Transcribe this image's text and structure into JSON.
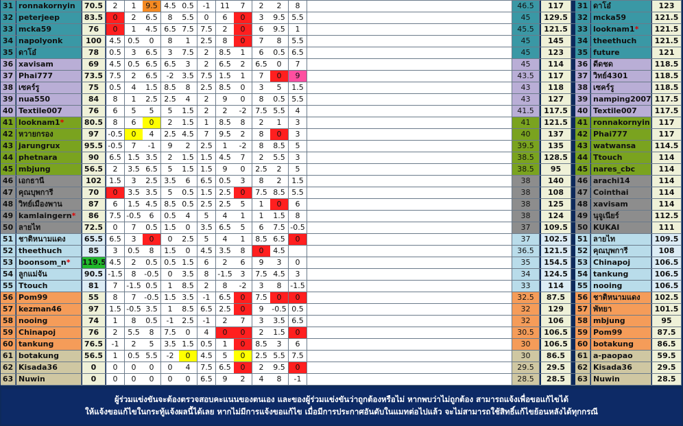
{
  "colors": {
    "teal": "#3a98a5",
    "lavender": "#b9aed6",
    "olive": "#7aa31f",
    "gray": "#8d8d8d",
    "lightblue": "#b9dcea",
    "orange": "#f59c59",
    "beige": "#cfc7a2",
    "scoreLight": "#eff1d8",
    "scoreBlue": "#dcecf5",
    "cellWhite": "#ffffff",
    "red": "#ff1f1f",
    "yellow": "#ffff00",
    "orangeHi": "#f58a22",
    "pink": "#ff4fa0",
    "green": "#21b82a"
  },
  "left_rows": [
    {
      "rank": "31",
      "name": "ronnakornyin",
      "total": "70.5",
      "weeks": [
        "2",
        "1",
        "9.5",
        "4.5",
        "0.5",
        "-1",
        "11",
        "7",
        "2",
        "2",
        "8"
      ],
      "band": "teal",
      "hi": {
        "2": "orangeHi"
      }
    },
    {
      "rank": "32",
      "name": "peterjeep",
      "total": "83.5",
      "weeks": [
        "0",
        "2",
        "6.5",
        "8",
        "5.5",
        "0",
        "6",
        "0",
        "3",
        "9.5",
        "5.5"
      ],
      "band": "teal",
      "hi": {
        "0": "red",
        "7": "red"
      }
    },
    {
      "rank": "33",
      "name": "mcka59",
      "total": "76",
      "weeks": [
        "0",
        "1",
        "4.5",
        "6.5",
        "7.5",
        "7.5",
        "2",
        "0",
        "6",
        "9.5",
        "1"
      ],
      "band": "teal",
      "hi": {
        "0": "red",
        "7": "red"
      }
    },
    {
      "rank": "34",
      "name": "napolyonk",
      "total": "100",
      "weeks": [
        "4.5",
        "0.5",
        "0",
        "8",
        "1",
        "2.5",
        "8",
        "0",
        "7",
        "8",
        "5.5"
      ],
      "band": "teal",
      "hi": {
        "7": "red"
      }
    },
    {
      "rank": "35",
      "name": "ดาโอ๋",
      "total": "78",
      "weeks": [
        "0.5",
        "3",
        "6.5",
        "3",
        "7.5",
        "2",
        "8.5",
        "1",
        "6",
        "0.5",
        "6.5"
      ],
      "band": "teal",
      "hi": {}
    },
    {
      "rank": "36",
      "name": "xavisam",
      "total": "69",
      "weeks": [
        "4.5",
        "0.5",
        "6.5",
        "6.5",
        "3",
        "2",
        "6.5",
        "2",
        "6.5",
        "0",
        "7"
      ],
      "band": "lavender",
      "hi": {}
    },
    {
      "rank": "37",
      "name": "Phai777",
      "total": "73.5",
      "weeks": [
        "7.5",
        "2",
        "6.5",
        "-2",
        "3.5",
        "7.5",
        "1.5",
        "1",
        "7",
        "0",
        "9"
      ],
      "band": "lavender",
      "hi": {
        "9": "red",
        "10": "pink"
      }
    },
    {
      "rank": "38",
      "name": "เซคร์รู",
      "total": "75",
      "weeks": [
        "0.5",
        "4",
        "1.5",
        "8.5",
        "8",
        "2.5",
        "8.5",
        "0",
        "3",
        "5",
        "1.5"
      ],
      "band": "lavender",
      "hi": {}
    },
    {
      "rank": "39",
      "name": "nua550",
      "total": "84",
      "weeks": [
        "8",
        "1",
        "2.5",
        "2.5",
        "4",
        "2",
        "9",
        "0",
        "8",
        "0.5",
        "5.5"
      ],
      "band": "lavender",
      "hi": {}
    },
    {
      "rank": "40",
      "name": "Textile007",
      "total": "76",
      "weeks": [
        "6",
        "5",
        "5",
        "5",
        "1.5",
        "2",
        "2",
        "-2",
        "7.5",
        "5.5",
        "4"
      ],
      "band": "lavender",
      "hi": {}
    },
    {
      "rank": "41",
      "name": "looknam1",
      "star": true,
      "total": "80.5",
      "weeks": [
        "8",
        "6",
        "0",
        "2",
        "1.5",
        "1",
        "8.5",
        "8",
        "2",
        "1",
        "3"
      ],
      "band": "olive",
      "hi": {
        "2": "yellow"
      }
    },
    {
      "rank": "42",
      "name": "หวายกรอง",
      "total": "97",
      "weeks": [
        "-0.5",
        "0",
        "4",
        "2.5",
        "4.5",
        "7",
        "9.5",
        "2",
        "8",
        "0",
        "3"
      ],
      "band": "olive",
      "hi": {
        "1": "yellow",
        "9": "red"
      }
    },
    {
      "rank": "43",
      "name": "jarungrux",
      "total": "95.5",
      "weeks": [
        "-0.5",
        "7",
        "-1",
        "9",
        "2",
        "2.5",
        "1",
        "-2",
        "8",
        "8.5",
        "5"
      ],
      "band": "olive",
      "hi": {}
    },
    {
      "rank": "44",
      "name": "phetnara",
      "total": "90",
      "weeks": [
        "6.5",
        "1.5",
        "3.5",
        "2",
        "1.5",
        "1.5",
        "4.5",
        "7",
        "2",
        "5.5",
        "3"
      ],
      "band": "olive",
      "hi": {}
    },
    {
      "rank": "45",
      "name": "mbjung",
      "total": "56.5",
      "weeks": [
        "2",
        "3.5",
        "6.5",
        "5",
        "1.5",
        "1.5",
        "9",
        "0",
        "2.5",
        "2",
        "5"
      ],
      "band": "olive",
      "hi": {}
    },
    {
      "rank": "46",
      "name": "เอกธานี",
      "total": "102",
      "weeks": [
        "1.5",
        "3",
        "2.5",
        "3.5",
        "6",
        "6.5",
        "0.5",
        "3",
        "8",
        "2",
        "1.5"
      ],
      "band": "gray",
      "hi": {}
    },
    {
      "rank": "47",
      "name": "คุณบุพการี",
      "total": "70",
      "weeks": [
        "0",
        "3.5",
        "3.5",
        "5",
        "0.5",
        "1.5",
        "2.5",
        "0",
        "7.5",
        "8.5",
        "5.5"
      ],
      "band": "gray",
      "hi": {
        "0": "red",
        "7": "red"
      }
    },
    {
      "rank": "48",
      "name": "วิทย์เมืองพาน",
      "total": "87",
      "weeks": [
        "6",
        "1.5",
        "4.5",
        "8.5",
        "0.5",
        "2.5",
        "2.5",
        "5",
        "1",
        "0",
        "6"
      ],
      "band": "gray",
      "hi": {
        "9": "red"
      }
    },
    {
      "rank": "49",
      "name": "kamlaingern",
      "star": true,
      "total": "86",
      "weeks": [
        "7.5",
        "-0.5",
        "6",
        "0.5",
        "4",
        "5",
        "4",
        "1",
        "1",
        "1.5",
        "8"
      ],
      "band": "gray",
      "hi": {}
    },
    {
      "rank": "50",
      "name": "ลายไท",
      "total": "72.5",
      "weeks": [
        "0",
        "7",
        "0.5",
        "1.5",
        "0",
        "3.5",
        "6.5",
        "5",
        "6",
        "7.5",
        "-0.5"
      ],
      "band": "gray",
      "hi": {}
    },
    {
      "rank": "51",
      "name": "ชาติหนามแดง",
      "total": "65.5",
      "weeks": [
        "6.5",
        "3",
        "0",
        "0",
        "2.5",
        "5",
        "4",
        "1",
        "8.5",
        "6.5",
        "0"
      ],
      "band": "lightblue",
      "hi": {
        "2": "red",
        "10": "red"
      }
    },
    {
      "rank": "52",
      "name": "theethuch",
      "total": "85",
      "weeks": [
        "3",
        "0.5",
        "8",
        "1.5",
        "0",
        "4.5",
        "3.5",
        "8",
        "0",
        "4.5",
        ""
      ],
      "band": "lightblue",
      "hi": {
        "8": "red"
      }
    },
    {
      "rank": "53",
      "name": "boonsom_n",
      "star": true,
      "total": "119.5",
      "weeks": [
        "4.5",
        "2",
        "0.5",
        "0.5",
        "1.5",
        "6",
        "2",
        "6",
        "9",
        "3",
        "0"
      ],
      "band": "lightblue",
      "hi": {}
    },
    {
      "rank": "54",
      "name": "ลูกแม่จัน",
      "total": "90.5",
      "weeks": [
        "-1.5",
        "8",
        "-0.5",
        "0",
        "3.5",
        "8",
        "-1.5",
        "3",
        "7.5",
        "4.5",
        "3"
      ],
      "band": "lightblue",
      "hi": {}
    },
    {
      "rank": "55",
      "name": "Ttouch",
      "total": "81",
      "weeks": [
        "7",
        "-1.5",
        "0.5",
        "1",
        "8.5",
        "2",
        "8",
        "-2",
        "3",
        "8",
        "-1.5"
      ],
      "band": "lightblue",
      "hi": {}
    },
    {
      "rank": "56",
      "name": "Pom99",
      "total": "55",
      "weeks": [
        "8",
        "7",
        "-0.5",
        "1.5",
        "3.5",
        "-1",
        "6.5",
        "0",
        "7.5",
        "0",
        "0"
      ],
      "band": "orange",
      "hi": {
        "7": "red",
        "9": "red",
        "10": "red"
      }
    },
    {
      "rank": "57",
      "name": "kezman46",
      "total": "97",
      "weeks": [
        "1.5",
        "-0.5",
        "3.5",
        "1",
        "8.5",
        "6.5",
        "2.5",
        "0",
        "9",
        "-0.5",
        "0.5"
      ],
      "band": "orange",
      "hi": {
        "7": "red"
      }
    },
    {
      "rank": "58",
      "name": "nooing",
      "total": "74",
      "weeks": [
        "1",
        "8",
        "0.5",
        "-1",
        "2.5",
        "-1",
        "2",
        "7",
        "3",
        "3.5",
        "6.5"
      ],
      "band": "orange",
      "hi": {}
    },
    {
      "rank": "59",
      "name": "Chinapoj",
      "total": "76",
      "weeks": [
        "2",
        "5.5",
        "8",
        "7.5",
        "0",
        "4",
        "0",
        "0",
        "2",
        "1.5",
        "0"
      ],
      "band": "orange",
      "hi": {
        "6": "red",
        "7": "red",
        "10": "red"
      }
    },
    {
      "rank": "60",
      "name": "tankung",
      "total": "76.5",
      "weeks": [
        "-1",
        "2",
        "5",
        "3.5",
        "1.5",
        "0.5",
        "1",
        "0",
        "8.5",
        "3",
        "6"
      ],
      "band": "orange",
      "hi": {
        "7": "red"
      }
    },
    {
      "rank": "61",
      "name": "botakung",
      "total": "56.5",
      "weeks": [
        "1",
        "0.5",
        "5.5",
        "-2",
        "0",
        "4.5",
        "5",
        "0",
        "2.5",
        "5.5",
        "7.5"
      ],
      "band": "beige",
      "hi": {
        "4": "yellow",
        "7": "yellow"
      }
    },
    {
      "rank": "62",
      "name": "Kisada36",
      "total": "0",
      "weeks": [
        "0",
        "0",
        "0",
        "0",
        "4",
        "7.5",
        "6.5",
        "0",
        "2",
        "9.5",
        "0"
      ],
      "band": "beige",
      "hi": {
        "7": "red",
        "10": "red"
      }
    },
    {
      "rank": "63",
      "name": "Nuwin",
      "total": "0",
      "weeks": [
        "0",
        "0",
        "0",
        "0",
        "0",
        "6.5",
        "9",
        "2",
        "4",
        "8",
        "-1"
      ],
      "band": "beige",
      "hi": {}
    }
  ],
  "mid_rows": [
    {
      "a": "46.5",
      "b": "117"
    },
    {
      "a": "45",
      "b": "129.5"
    },
    {
      "a": "45.5",
      "b": "121.5"
    },
    {
      "a": "45",
      "b": "145"
    },
    {
      "a": "45",
      "b": "123"
    },
    {
      "a": "45",
      "b": "114"
    },
    {
      "a": "43.5",
      "b": "117"
    },
    {
      "a": "43",
      "b": "118"
    },
    {
      "a": "43",
      "b": "127"
    },
    {
      "a": "41.5",
      "b": "117.5"
    },
    {
      "a": "41",
      "b": "121.5"
    },
    {
      "a": "40",
      "b": "137"
    },
    {
      "a": "39.5",
      "b": "135"
    },
    {
      "a": "38.5",
      "b": "128.5"
    },
    {
      "a": "38.5",
      "b": "95"
    },
    {
      "a": "38",
      "b": "140"
    },
    {
      "a": "38",
      "b": "108"
    },
    {
      "a": "38",
      "b": "125"
    },
    {
      "a": "38",
      "b": "124"
    },
    {
      "a": "37",
      "b": "109.5"
    },
    {
      "a": "37",
      "b": "102.5"
    },
    {
      "a": "36.5",
      "b": "121.5"
    },
    {
      "a": "35",
      "b": "154.5"
    },
    {
      "a": "34",
      "b": "124.5"
    },
    {
      "a": "33",
      "b": "114"
    },
    {
      "a": "32.5",
      "b": "87.5"
    },
    {
      "a": "32",
      "b": "129"
    },
    {
      "a": "32",
      "b": "106"
    },
    {
      "a": "30.5",
      "b": "106.5"
    },
    {
      "a": "30",
      "b": "106.5"
    },
    {
      "a": "30",
      "b": "86.5"
    },
    {
      "a": "29.5",
      "b": "29.5"
    },
    {
      "a": "28.5",
      "b": "28.5"
    }
  ],
  "right_rows": [
    {
      "rank": "31",
      "name": "ดาโอ๋",
      "score": "123"
    },
    {
      "rank": "32",
      "name": "mcka59",
      "score": "121.5"
    },
    {
      "rank": "33",
      "name": "looknam1",
      "star": true,
      "score": "121.5"
    },
    {
      "rank": "34",
      "name": "theethuch",
      "score": "121.5"
    },
    {
      "rank": "35",
      "name": "future",
      "score": "121"
    },
    {
      "rank": "36",
      "name": "ดีดชด",
      "score": "118.5"
    },
    {
      "rank": "37",
      "name": "วิทย์4301",
      "score": "118.5"
    },
    {
      "rank": "38",
      "name": "เซคร์รู",
      "score": "118.5"
    },
    {
      "rank": "39",
      "name": "namping2007",
      "score": "117.5"
    },
    {
      "rank": "40",
      "name": "Textile007",
      "score": "117.5"
    },
    {
      "rank": "41",
      "name": "ronnakornyin",
      "score": "117"
    },
    {
      "rank": "42",
      "name": "Phai777",
      "score": "117"
    },
    {
      "rank": "43",
      "name": "watwansa",
      "score": "114.5"
    },
    {
      "rank": "44",
      "name": "Ttouch",
      "score": "114"
    },
    {
      "rank": "45",
      "name": "nares_cbc",
      "score": "114"
    },
    {
      "rank": "46",
      "name": "arachi14",
      "score": "114"
    },
    {
      "rank": "47",
      "name": "Cointhai",
      "score": "114"
    },
    {
      "rank": "48",
      "name": "xavisam",
      "score": "114"
    },
    {
      "rank": "49",
      "name": "นุจูเนียร์",
      "score": "112.5"
    },
    {
      "rank": "50",
      "name": "KUKAI",
      "score": "111"
    },
    {
      "rank": "51",
      "name": "ลายไท",
      "score": "109.5"
    },
    {
      "rank": "52",
      "name": "คุณบุพการี",
      "score": "108"
    },
    {
      "rank": "53",
      "name": "Chinapoj",
      "score": "106.5"
    },
    {
      "rank": "54",
      "name": "tankung",
      "score": "106.5"
    },
    {
      "rank": "55",
      "name": "nooing",
      "score": "106.5"
    },
    {
      "rank": "56",
      "name": "ชาติหนามแดง",
      "score": "102.5"
    },
    {
      "rank": "57",
      "name": "พัทยา",
      "score": "101.5"
    },
    {
      "rank": "58",
      "name": "mbjung",
      "score": "95"
    },
    {
      "rank": "59",
      "name": "Pom99",
      "score": "87.5"
    },
    {
      "rank": "60",
      "name": "botakung",
      "score": "86.5"
    },
    {
      "rank": "61",
      "name": "a-paopao",
      "score": "59.5"
    },
    {
      "rank": "62",
      "name": "Kisada36",
      "score": "29.5"
    },
    {
      "rank": "63",
      "name": "Nuwin",
      "score": "28.5"
    }
  ],
  "footer": {
    "line1": "ผู้ร่วมแข่งขันจะต้องตรวจสอบคะแนนของตนเอง และของผู้ร่วมแข่งขันว่าถูกต้องหรือไม่ หากพบว่าไม่ถูกต้อง สามารถแจ้งเพื่อขอแก้ไขได้",
    "line2": "ให้แจ้งขอแก้ไขในกระทู้แจ้งผลนี้ได้เลย  หากไม่มีการแจ้งขอแก้ไข เมื่อมีการประกาศอันดับในแมทต่อไปแล้ว จะไม่สามารถใช้สิทธิ์แก้ไขย้อนหลังได้ทุกกรณี"
  }
}
